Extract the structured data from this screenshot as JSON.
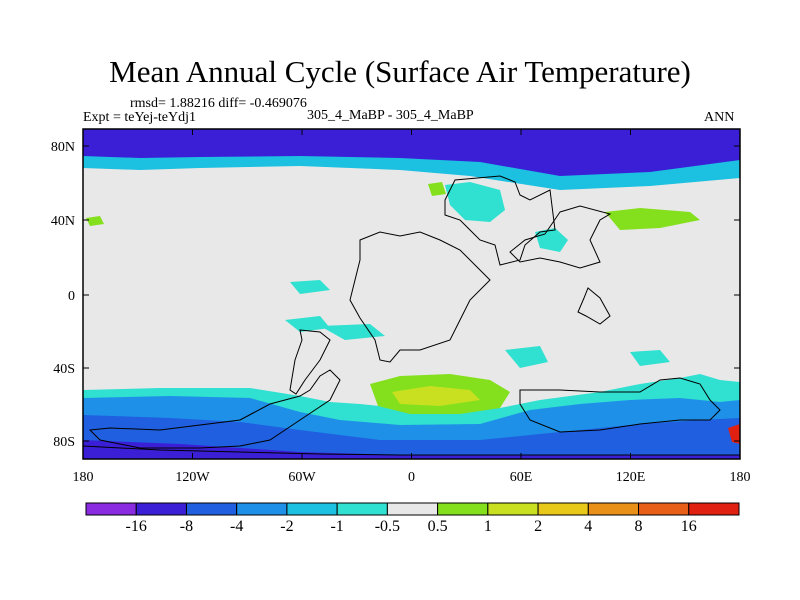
{
  "title": "Mean Annual Cycle (Surface Air Temperature)",
  "stats": "rmsd= 1.88216 diff= -0.469076",
  "experiment": "Expt = teYej-teYdj1",
  "comparison": "305_4_MaBP - 305_4_MaBP",
  "season": "ANN",
  "lat_ticks": [
    "80N",
    "40N",
    "0",
    "40S",
    "80S"
  ],
  "lon_ticks": [
    "180",
    "120W",
    "60W",
    "0",
    "60E",
    "120E",
    "180"
  ],
  "colorbar": {
    "labels": [
      "-16",
      "-8",
      "-4",
      "-2",
      "-1",
      "-0.5",
      "0.5",
      "1",
      "2",
      "4",
      "8",
      "16"
    ],
    "colors": [
      "#8a2be2",
      "#3b1fd6",
      "#1f5fe0",
      "#1e90e8",
      "#1cc0e0",
      "#30e0d0",
      "#e8e8e8",
      "#84e01c",
      "#c8e020",
      "#e8c818",
      "#e89018",
      "#e86018",
      "#e02010"
    ]
  },
  "chart_data": {
    "type": "heatmap",
    "title": "Mean Annual Cycle (Surface Air Temperature)",
    "variable": "Surface Air Temperature difference",
    "x_range": [
      -180,
      180
    ],
    "y_range": [
      -90,
      90
    ],
    "xlabel": "",
    "ylabel": "",
    "contour_levels": [
      -16,
      -8,
      -4,
      -2,
      -1,
      -0.5,
      0.5,
      1,
      2,
      4,
      8,
      16
    ]
  }
}
